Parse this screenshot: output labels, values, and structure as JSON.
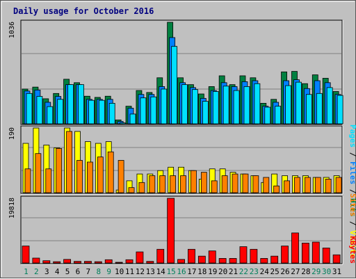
{
  "title": "Daily usage for October 2016",
  "colors": {
    "hits": "#008040",
    "files": "#0080ff",
    "pages": "#00e0ff",
    "visits": "#ffff00",
    "sites": "#ff8000",
    "kbytes": "#ff0000",
    "weekday_label": "#000000",
    "weekend_label": "#00805c",
    "legend_sep": "#000000",
    "background": "#c0c0c0"
  },
  "legend": {
    "top": {
      "pages": "Pages",
      "sep1": " / ",
      "files": "Files",
      "sep2": " / ",
      "hits": "Hits"
    },
    "middle": {
      "sites": "Sites",
      "sep": " / ",
      "visits": "Visits"
    },
    "bottom": {
      "kbytes": "KBytes"
    }
  },
  "chart_data": {
    "type": "bar",
    "title": "Daily usage for October 2016",
    "categories": [
      "1",
      "2",
      "3",
      "4",
      "5",
      "6",
      "7",
      "8",
      "9",
      "10",
      "11",
      "12",
      "13",
      "14",
      "15",
      "16",
      "17",
      "18",
      "19",
      "20",
      "21",
      "22",
      "23",
      "24",
      "25",
      "26",
      "27",
      "28",
      "29",
      "30",
      "31"
    ],
    "weekend_days": [
      "1",
      "2",
      "8",
      "9",
      "15",
      "16",
      "22",
      "23",
      "29",
      "30"
    ],
    "panels": [
      {
        "name": "hits-files-pages",
        "ymax_label": "1036",
        "ylim": [
          0,
          1036
        ],
        "series": [
          {
            "name": "Hits",
            "values": [
              355,
              375,
              256,
              310,
              455,
              420,
              282,
              270,
              282,
              40,
              180,
              340,
              320,
              470,
              1036,
              470,
              400,
              305,
              380,
              490,
              400,
              490,
              470,
              210,
              250,
              530,
              535,
              410,
              500,
              465,
              330
            ]
          },
          {
            "name": "Files",
            "values": [
              335,
              345,
              220,
              280,
              400,
              400,
              250,
              250,
              250,
              25,
              160,
              300,
              300,
              380,
              880,
              420,
              370,
              260,
              340,
              420,
              380,
              430,
              440,
              180,
              220,
              440,
              450,
              360,
              440,
              420,
              300
            ]
          },
          {
            "name": "Pages",
            "values": [
              310,
              280,
              176,
              250,
              400,
              400,
              240,
              240,
              210,
              10,
              100,
              265,
              275,
              355,
              790,
              400,
              350,
              230,
              330,
              385,
              340,
              380,
              410,
              170,
              180,
              390,
              425,
              300,
              310,
              370,
              290
            ]
          }
        ]
      },
      {
        "name": "visits-sites",
        "ymax_label": "190",
        "ylim": [
          0,
          190
        ],
        "series": [
          {
            "name": "Visits",
            "values": [
              145,
              190,
              140,
              132,
              190,
              180,
              150,
              145,
              150,
              8,
              35,
              55,
              55,
              65,
              75,
              75,
              65,
              40,
              70,
              70,
              60,
              55,
              50,
              30,
              55,
              50,
              50,
              50,
              45,
              45,
              50
            ]
          },
          {
            "name": "Sites",
            "values": [
              70,
              115,
              70,
              130,
              180,
              95,
              90,
              105,
              120,
              95,
              15,
              30,
              50,
              50,
              50,
              50,
              65,
              60,
              35,
              50,
              55,
              55,
              50,
              45,
              20,
              35,
              45,
              45,
              45,
              40,
              45
            ]
          }
        ]
      },
      {
        "name": "kbytes",
        "ymax_label": "19818",
        "ylim": [
          0,
          19818
        ],
        "series": [
          {
            "name": "KBytes",
            "values": [
              5200,
              1500,
              700,
              400,
              1100,
              500,
              500,
              400,
              1000,
              100,
              1000,
              3400,
              500,
              4200,
              19818,
              1100,
              4200,
              2100,
              3700,
              1400,
              1400,
              5000,
              4200,
              1400,
              2100,
              5200,
              9200,
              6100,
              6400,
              4600,
              2500
            ]
          }
        ]
      }
    ]
  }
}
